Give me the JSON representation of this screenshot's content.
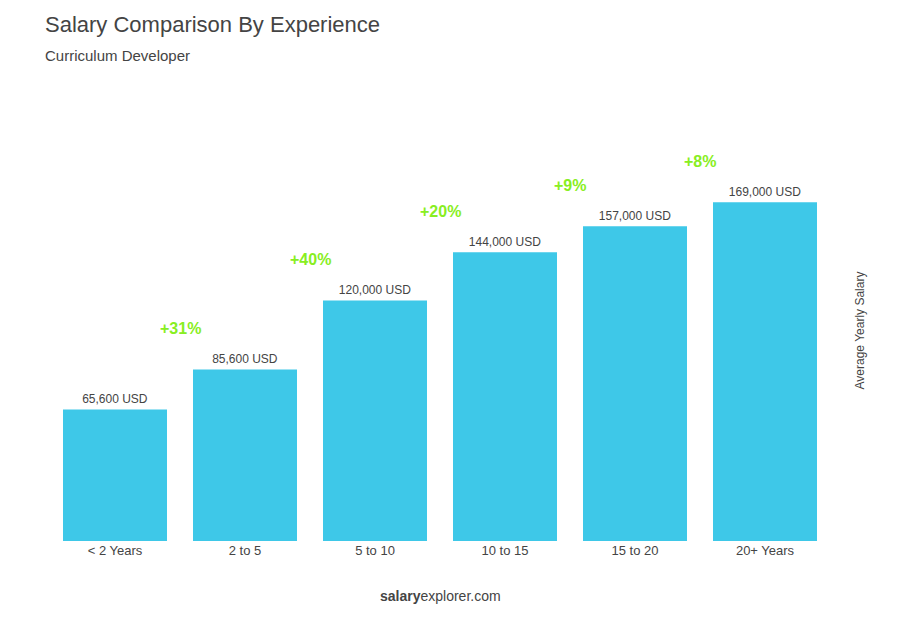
{
  "chart_data": {
    "type": "bar",
    "title": "Salary Comparison By Experience",
    "subtitle": "Curriculum Developer",
    "categories": [
      "< 2 Years",
      "2 to 5",
      "5 to 10",
      "10 to 15",
      "15 to 20",
      "20+ Years"
    ],
    "values": [
      65600,
      85600,
      120000,
      144000,
      157000,
      169000
    ],
    "value_labels": [
      "65,600 USD",
      "85,600 USD",
      "120,000 USD",
      "144,000 USD",
      "157,000 USD",
      "169,000 USD"
    ],
    "data_labels": true,
    "color": "#3ec8e8",
    "ylabel": "Average Yearly Salary",
    "ylim": [
      0,
      210000
    ],
    "tick_labels": "x",
    "grid": false,
    "annotations": [
      {
        "text": "+31%",
        "color": "#88ee22"
      },
      {
        "text": "+40%",
        "color": "#88ee22"
      },
      {
        "text": "+20%",
        "color": "#88ee22"
      },
      {
        "text": "+9%",
        "color": "#88ee22"
      },
      {
        "text": "+8%",
        "color": "#88ee22"
      }
    ],
    "footer": [
      "salary",
      "explorer.com"
    ]
  }
}
